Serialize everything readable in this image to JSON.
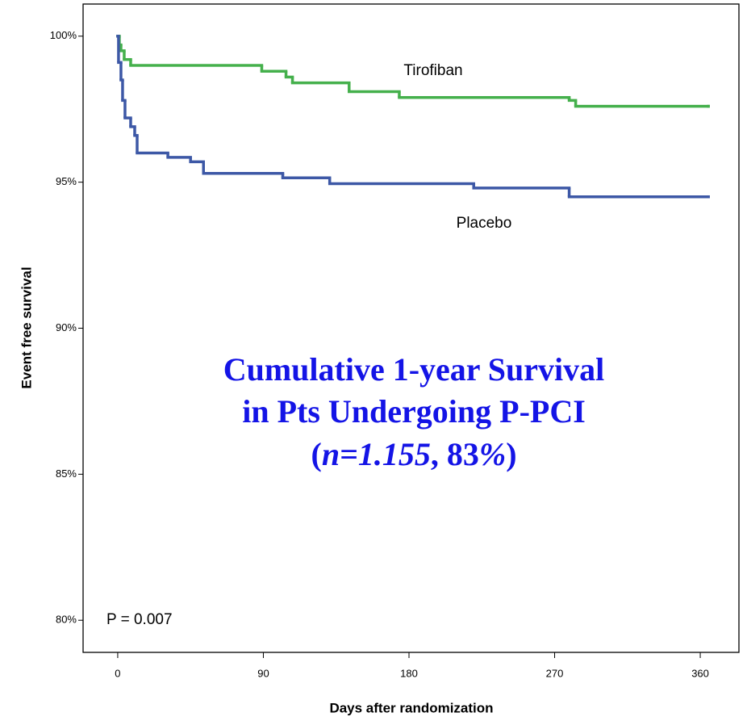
{
  "chart_data": {
    "type": "step",
    "xlabel": "Days after randomization",
    "ylabel": "Event free survival",
    "xlim": [
      -21.4,
      383.9
    ],
    "ylim": [
      78.9,
      101.1
    ],
    "xticks": [
      0,
      90,
      180,
      270,
      360
    ],
    "yticks": [
      {
        "value": 80,
        "label": "80%"
      },
      {
        "value": 85,
        "label": "85%"
      },
      {
        "value": 90,
        "label": "90%"
      },
      {
        "value": 95,
        "label": "95%"
      },
      {
        "value": 100,
        "label": "100%"
      }
    ],
    "series": [
      {
        "name": "Tirofiban",
        "color": "#45b04c",
        "x": [
          0,
          1,
          2,
          4,
          8,
          89,
          104,
          108,
          143,
          174,
          279,
          283,
          365
        ],
        "values": [
          100,
          99.7,
          99.5,
          99.2,
          99.0,
          98.8,
          98.6,
          98.4,
          98.1,
          97.9,
          97.8,
          97.6,
          97.6
        ]
      },
      {
        "name": "Placebo",
        "color": "#3d58a6",
        "x": [
          0,
          0.5,
          2,
          3,
          4.5,
          8,
          10.5,
          12,
          31,
          45,
          53,
          102,
          131,
          220,
          279,
          365
        ],
        "values": [
          100,
          99.1,
          98.5,
          97.8,
          97.2,
          96.9,
          96.6,
          96.0,
          95.85,
          95.7,
          95.3,
          95.15,
          94.95,
          94.8,
          94.5,
          94.5
        ]
      }
    ],
    "p_value_text": "P = 0.007",
    "overlay_title": [
      [
        {
          "text": "Cumulative 1-year Survival",
          "italic": false
        }
      ],
      [
        {
          "text": "in Pts Undergoing P-PCI",
          "italic": false
        }
      ],
      [
        {
          "text": "(",
          "italic": false
        },
        {
          "text": "n=1.155",
          "italic": true
        },
        {
          "text": ", 83",
          "italic": false
        },
        {
          "text": "%",
          "italic": true
        },
        {
          "text": ")",
          "italic": false
        }
      ]
    ]
  }
}
